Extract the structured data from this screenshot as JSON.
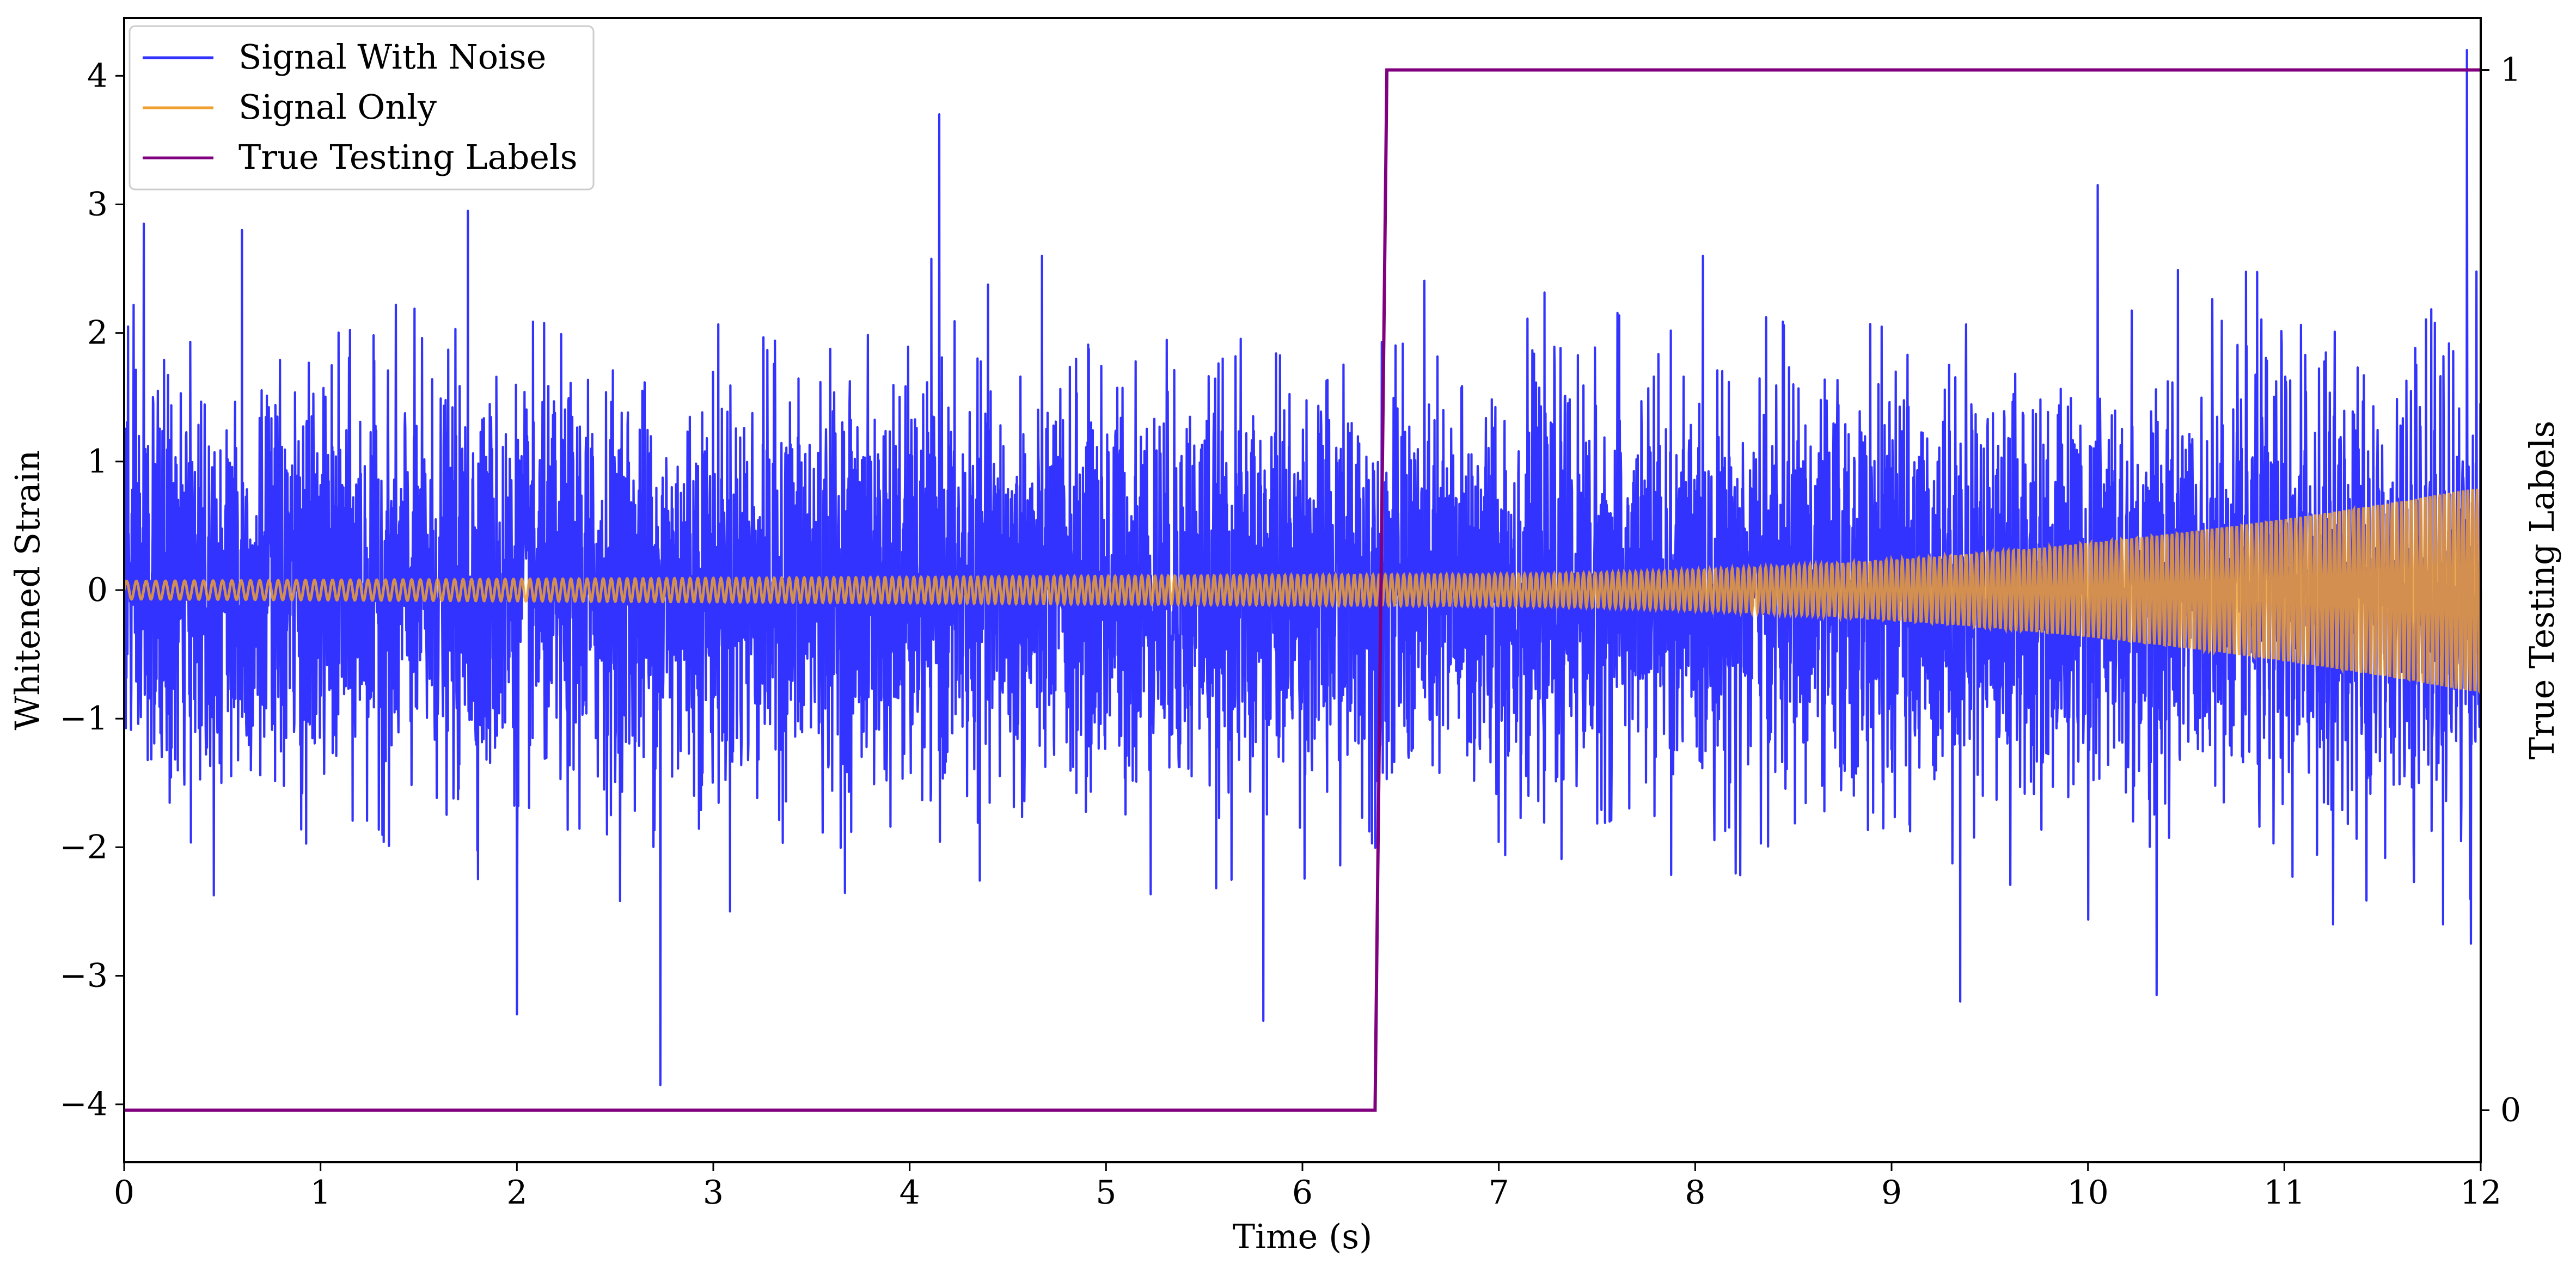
{
  "chart_data": {
    "type": "line",
    "title": "",
    "xlabel": "Time (s)",
    "ylabel": "Whitened Strain",
    "y2label": "True Testing Labels",
    "xlim": [
      0,
      12
    ],
    "ylim": [
      -4.45,
      4.45
    ],
    "y2lim": [
      -0.05,
      1.05
    ],
    "x_ticks": [
      0,
      1,
      2,
      3,
      4,
      5,
      6,
      7,
      8,
      9,
      10,
      11,
      12
    ],
    "y_ticks": [
      -4,
      -3,
      -2,
      -1,
      0,
      1,
      2,
      3,
      4
    ],
    "y2_ticks": [
      0,
      1
    ],
    "grid": false,
    "legend_position": "upper-left",
    "series": [
      {
        "name": "Signal With Noise",
        "axis": "left",
        "color": "#3333ff",
        "description_values": {
          "noise_std": 0.75,
          "peak_points": [
            {
              "x": 0.02,
              "y": 2.05
            },
            {
              "x": 0.1,
              "y": 2.85
            },
            {
              "x": 0.6,
              "y": 2.8
            },
            {
              "x": 1.75,
              "y": 2.95
            },
            {
              "x": 2.0,
              "y": -3.3
            },
            {
              "x": 2.73,
              "y": -3.85
            },
            {
              "x": 4.15,
              "y": 3.7
            },
            {
              "x": 5.8,
              "y": -3.35
            },
            {
              "x": 9.35,
              "y": -3.2
            },
            {
              "x": 10.05,
              "y": 3.15
            },
            {
              "x": 10.35,
              "y": -3.15
            },
            {
              "x": 11.93,
              "y": 4.2
            },
            {
              "x": 11.95,
              "y": -2.75
            }
          ]
        }
      },
      {
        "name": "Signal Only",
        "axis": "left",
        "color": "#f0a030",
        "description_values": {
          "amplitude_start": 0.07,
          "amplitude_mid": 0.12,
          "amplitude_end": 0.8,
          "cycles_per_second_start": 20,
          "cycles_per_second_end": 42
        }
      },
      {
        "name": "True Testing Labels",
        "axis": "right",
        "color": "#800080",
        "points": [
          {
            "x": 0,
            "y": 0
          },
          {
            "x": 6.37,
            "y": 0
          },
          {
            "x": 6.43,
            "y": 1
          },
          {
            "x": 12,
            "y": 1
          }
        ]
      }
    ]
  }
}
